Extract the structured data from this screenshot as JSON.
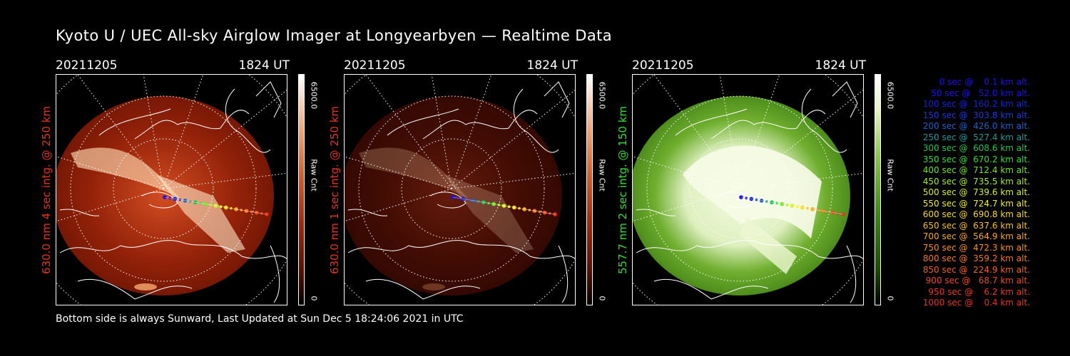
{
  "title": "Kyoto U / UEC All-sky Airglow Imager at Longyearbyen — Realtime Data",
  "panels": [
    {
      "date": "20211205",
      "time": "1824 UT",
      "side_label": "630.0 nm 4 sec intg. @ 250 km",
      "side_color": "#e8321e",
      "cbar_max": "6500.0",
      "cbar_min": "0",
      "cbar_unit": "Raw Cnt",
      "cmap": "red",
      "brightness": 0.85
    },
    {
      "date": "20211205",
      "time": "1824 UT",
      "side_label": "630.0 nm 1 sec intg. @ 250 km",
      "side_color": "#e8321e",
      "cbar_max": "6500.0",
      "cbar_min": "0",
      "cbar_unit": "Raw Cnt",
      "cmap": "red",
      "brightness": 0.3
    },
    {
      "date": "20211205",
      "time": "1824 UT",
      "side_label": "557.7 nm 2 sec intg. @ 150 km",
      "side_color": "#2ee02e",
      "cbar_max": "6500.0",
      "cbar_min": "0",
      "cbar_unit": "Raw Cnt",
      "cmap": "green",
      "brightness": 0.9
    }
  ],
  "legend": [
    {
      "text": "   0 sec @    0.1 km alt.",
      "color": "#1c10f0"
    },
    {
      "text": "  50 sec @   52.0 km alt.",
      "color": "#1c10f0"
    },
    {
      "text": " 100 sec @  160.2 km alt.",
      "color": "#1222e8"
    },
    {
      "text": " 150 sec @  303.8 km alt.",
      "color": "#1838e0"
    },
    {
      "text": " 200 sec @  426.0 km alt.",
      "color": "#1e60d0"
    },
    {
      "text": " 250 sec @  527.4 km alt.",
      "color": "#1e9aa0"
    },
    {
      "text": " 300 sec @  608.6 km alt.",
      "color": "#1cc84a"
    },
    {
      "text": " 350 sec @  670.2 km alt.",
      "color": "#2ee02e"
    },
    {
      "text": " 400 sec @  712.4 km alt.",
      "color": "#6ee61e"
    },
    {
      "text": " 450 sec @  735.5 km alt.",
      "color": "#a8ee1e"
    },
    {
      "text": " 500 sec @  739.6 km alt.",
      "color": "#d8f01e"
    },
    {
      "text": " 550 sec @  724.7 km alt.",
      "color": "#f4f01e"
    },
    {
      "text": " 600 sec @  690.8 km alt.",
      "color": "#f8dc1e"
    },
    {
      "text": " 650 sec @  637.6 km alt.",
      "color": "#f8c01e"
    },
    {
      "text": " 700 sec @  564.9 km alt.",
      "color": "#f8a81e"
    },
    {
      "text": " 750 sec @  472.3 km alt.",
      "color": "#f8901e"
    },
    {
      "text": " 800 sec @  359.2 km alt.",
      "color": "#f8781e"
    },
    {
      "text": " 850 sec @  224.9 km alt.",
      "color": "#f4601e"
    },
    {
      "text": " 900 sec @   68.7 km alt.",
      "color": "#f0481e"
    },
    {
      "text": " 950 sec @    6.2 km alt.",
      "color": "#ec381e"
    },
    {
      "text": "1000 sec @    0.4 km alt.",
      "color": "#e8321e"
    }
  ],
  "footer": "Bottom side is always Sunward, Last Updated at Sun Dec  5 18:24:06 2021 in UTC"
}
